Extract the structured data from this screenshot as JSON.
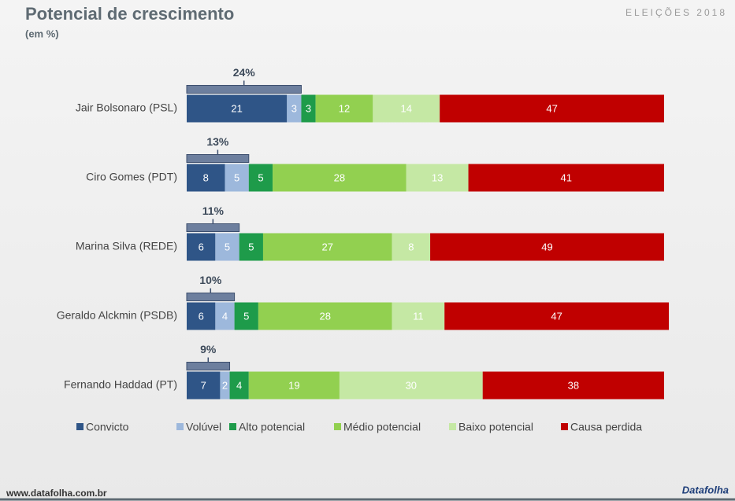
{
  "chart_data": {
    "type": "stacked-bar",
    "title": "Potencial de crescimento",
    "subtitle": "(em %)",
    "brand": "ELEIÇÕES 2018",
    "source": "www.datafolha.com.br",
    "logo": "Datafolha",
    "categories": [
      "Jair Bolsonaro (PSL)",
      "Ciro Gomes (PDT)",
      "Marina Silva (REDE)",
      "Geraldo Alckmin (PSDB)",
      "Fernando Haddad (PT)"
    ],
    "series": [
      {
        "name": "Convicto",
        "color": "#2f5587",
        "values": [
          21,
          8,
          6,
          6,
          7
        ]
      },
      {
        "name": "Volúvel",
        "color": "#9db8dc",
        "values": [
          3,
          5,
          5,
          4,
          2
        ]
      },
      {
        "name": "Alto potencial",
        "color": "#1e9b4a",
        "values": [
          3,
          5,
          5,
          5,
          4
        ]
      },
      {
        "name": "Médio potencial",
        "color": "#92d050",
        "values": [
          12,
          28,
          27,
          28,
          19
        ]
      },
      {
        "name": "Baixo potencial",
        "color": "#c5e8a4",
        "values": [
          14,
          13,
          8,
          11,
          30
        ]
      },
      {
        "name": "Causa perdida",
        "color": "#c00000",
        "values": [
          47,
          41,
          49,
          47,
          38
        ]
      }
    ],
    "totals": {
      "values": [
        24,
        13,
        11,
        10,
        9
      ],
      "value_labels": [
        "24%",
        "13%",
        "11%",
        "10%",
        "9%"
      ]
    },
    "xlim": [
      0,
      100
    ]
  }
}
